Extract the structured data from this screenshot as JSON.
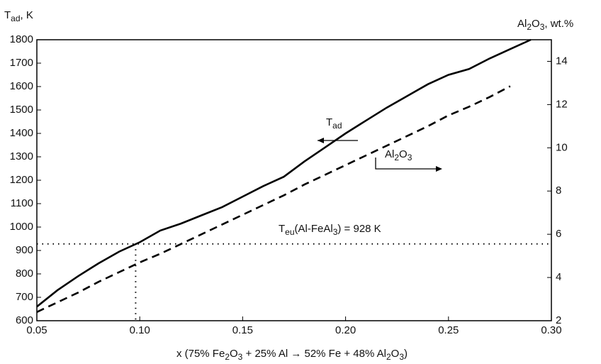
{
  "chart_data": {
    "type": "line",
    "y_label": [
      "T",
      "ad",
      ", K"
    ],
    "y2_label": [
      "Al",
      "2",
      "O",
      "3",
      ", wt.%"
    ],
    "x_label": [
      "x (75% Fe",
      "2",
      "O",
      "3",
      " + 25% Al → 52% Fe + 48% Al",
      "2",
      "O",
      "3",
      ")"
    ],
    "annotations": [
      {
        "parts": [
          "T",
          "ad"
        ]
      },
      {
        "parts": [
          "Al",
          "2",
          "O",
          "3"
        ]
      },
      {
        "parts": [
          "T",
          "eu",
          "(Al-FeAl",
          "3",
          ") = 928 K"
        ],
        "y": 928,
        "x": 0.098
      }
    ],
    "x": [
      0.05,
      0.06,
      0.07,
      0.08,
      0.09,
      0.1,
      0.11,
      0.12,
      0.13,
      0.14,
      0.15,
      0.16,
      0.17,
      0.18,
      0.19,
      0.2,
      0.21,
      0.22,
      0.23,
      0.24,
      0.25,
      0.26,
      0.27,
      0.28,
      0.29
    ],
    "series": [
      {
        "name": "T_ad",
        "color": "#000000",
        "dash": "solid",
        "values": [
          660,
          730,
          790,
          845,
          895,
          935,
          985,
          1015,
          1050,
          1085,
          1130,
          1175,
          1215,
          1280,
          1340,
          1400,
          1455,
          1510,
          1560,
          1610,
          1650,
          1675,
          1720,
          1760,
          1800
        ]
      },
      {
        "name": "Al2O3",
        "color": "#000000",
        "dash": "dashed",
        "axis": "y2",
        "values": [
          2.4,
          2.85,
          3.3,
          3.8,
          4.25,
          4.7,
          5.1,
          5.55,
          6.0,
          6.45,
          6.9,
          7.35,
          7.8,
          8.3,
          8.75,
          9.2,
          9.65,
          10.1,
          10.55,
          11.0,
          11.5,
          11.9,
          12.35,
          12.85,
          null
        ]
      }
    ],
    "xlim": [
      0.05,
      0.3
    ],
    "xticks": [
      0.05,
      {
        "value": 0.1,
        "label": "0.10"
      },
      0.15,
      {
        "value": 0.2,
        "label": "0.20"
      },
      0.25,
      {
        "value": 0.3,
        "label": "0.30"
      }
    ],
    "ylim": [
      600,
      1800
    ],
    "yticks": [
      600,
      700,
      800,
      900,
      1000,
      1100,
      1200,
      1300,
      1400,
      1500,
      1600,
      1700,
      1800
    ],
    "y2lim": [
      2,
      15
    ],
    "y2ticks": [
      2,
      4,
      6,
      8,
      10,
      12,
      14
    ]
  }
}
